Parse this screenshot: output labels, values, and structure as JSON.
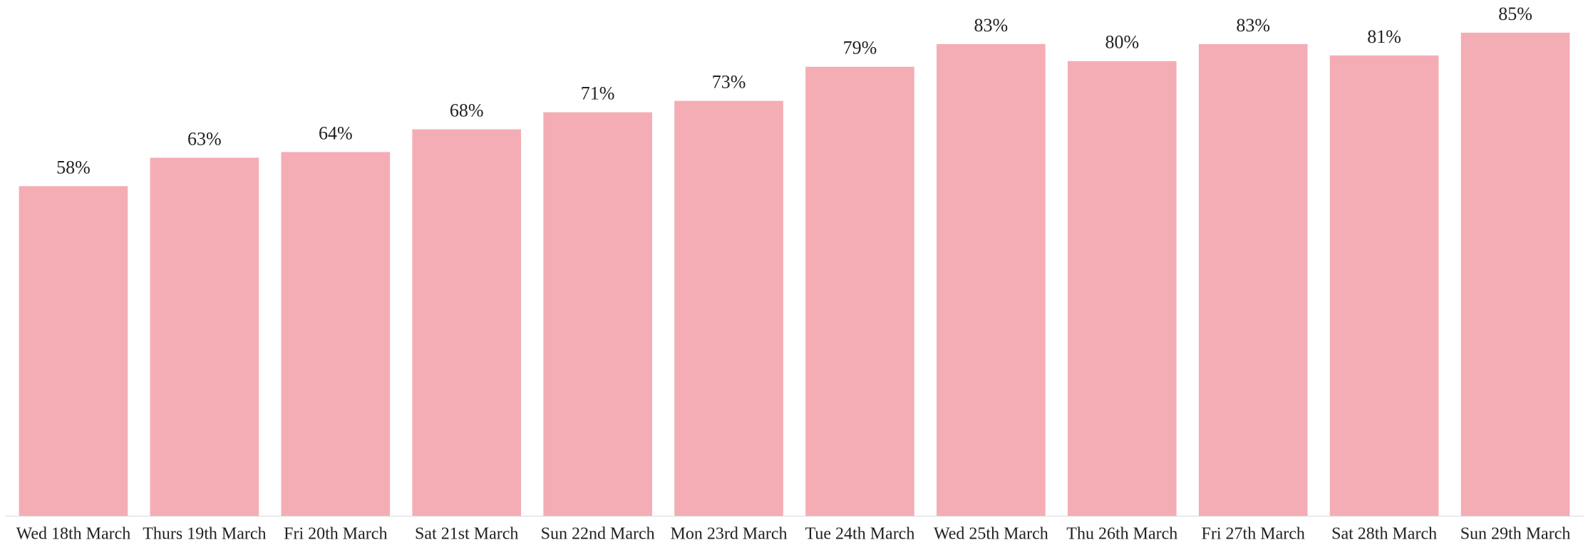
{
  "chart_data": {
    "type": "bar",
    "categories": [
      "Wed 18th March",
      "Thurs 19th March",
      "Fri 20th March",
      "Sat 21st March",
      "Sun 22nd March",
      "Mon 23rd March",
      "Tue 24th March",
      "Wed 25th March",
      "Thu 26th March",
      "Fri 27th March",
      "Sat 28th March",
      "Sun 29th March"
    ],
    "values": [
      58,
      63,
      64,
      68,
      71,
      73,
      79,
      83,
      80,
      83,
      81,
      85
    ],
    "value_labels": [
      "58%",
      "63%",
      "64%",
      "68%",
      "71%",
      "73%",
      "79%",
      "83%",
      "80%",
      "83%",
      "81%",
      "85%"
    ],
    "color": "#f4adb4",
    "ylim": [
      0,
      90
    ],
    "grid": false
  }
}
